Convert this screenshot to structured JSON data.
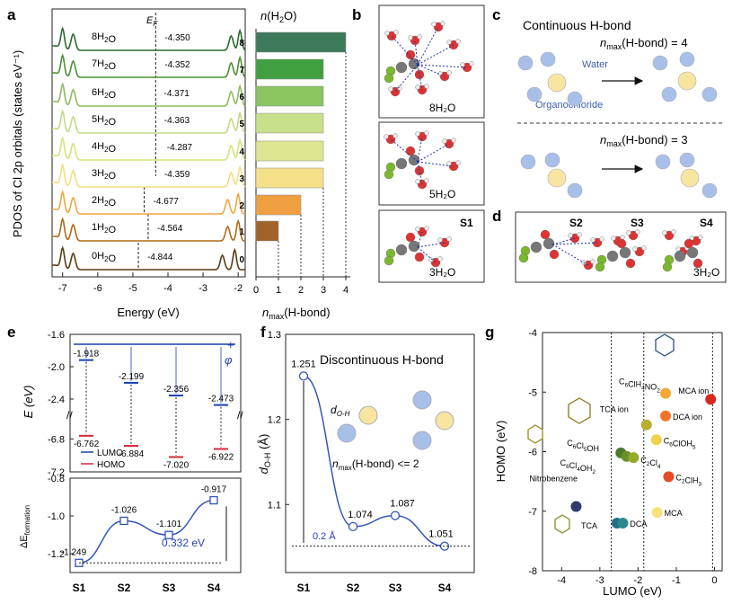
{
  "chart_data": [
    {
      "panel": "a",
      "type": "line",
      "ylabel": "PDOS of Cl 2p orbitals (states eV⁻¹)",
      "xlabel": "Energy (eV)",
      "x_ticks": [
        "-7",
        "-6",
        "-5",
        "-4",
        "-3",
        "-2"
      ],
      "xlim": [
        -7.3,
        -1.8
      ],
      "fermi_label": "E_F",
      "series": [
        {
          "name": "0H₂O",
          "fermi": -4.844,
          "fermi_label": "-4.844",
          "peaks": [
            -7.0,
            -6.7,
            -2.45,
            -2.1
          ]
        },
        {
          "name": "1H₂O",
          "fermi": -4.564,
          "fermi_label": "-4.564",
          "peaks": [
            -7.0,
            -6.7,
            -2.3,
            -2.0
          ]
        },
        {
          "name": "2H₂O",
          "fermi": -4.677,
          "fermi_label": "-4.677",
          "peaks": [
            -7.0,
            -6.7,
            -2.3,
            -2.0
          ]
        },
        {
          "name": "3H₂O",
          "fermi": -4.359,
          "fermi_label": "-4.359",
          "peaks": [
            -7.0,
            -6.7,
            -2.2,
            -1.95
          ]
        },
        {
          "name": "4H₂O",
          "fermi": -4.287,
          "fermi_label": "-4.287",
          "peaks": [
            -7.0,
            -6.7,
            -2.2,
            -1.95
          ]
        },
        {
          "name": "5H₂O",
          "fermi": -4.363,
          "fermi_label": "-4.363",
          "peaks": [
            -7.0,
            -6.7,
            -2.2,
            -1.95
          ]
        },
        {
          "name": "6H₂O",
          "fermi": -4.371,
          "fermi_label": "-4.371",
          "peaks": [
            -7.0,
            -6.7,
            -2.2,
            -1.95
          ]
        },
        {
          "name": "7H₂O",
          "fermi": -4.352,
          "fermi_label": "-4.352",
          "peaks": [
            -7.0,
            -6.7,
            -2.2,
            -1.95
          ]
        },
        {
          "name": "8H₂O",
          "fermi": -4.35,
          "fermi_label": "-4.350",
          "peaks": [
            -7.0,
            -6.7,
            -2.2,
            -1.95
          ]
        }
      ],
      "colors": [
        "#5a3c12",
        "#b06a18",
        "#f0a640",
        "#f1dd86",
        "#d6e27c",
        "#c2da86",
        "#8fba60",
        "#4f8f35",
        "#2c6b2c"
      ]
    },
    {
      "panel": "a-bar",
      "type": "bar",
      "ytitle": "n(H₂O)",
      "xlabel": "n_max(H-bond)",
      "categories": [
        "0",
        "1",
        "2",
        "3",
        "4",
        "5",
        "6",
        "7",
        "8"
      ],
      "values": [
        0,
        1,
        2,
        3,
        3,
        3,
        3,
        3,
        4
      ],
      "x_ticks": [
        "0",
        "1",
        "2",
        "3",
        "4"
      ],
      "xlim": [
        0,
        4
      ],
      "colors": [
        "#ffffff",
        "#a0642a",
        "#f0a040",
        "#f5e08a",
        "#dde690",
        "#c8e08a",
        "#8cc460",
        "#40a040",
        "#3c7a5a"
      ]
    },
    {
      "panel": "e",
      "type": "scatter",
      "title_symbol": "φ",
      "ylabel": "E (eV)",
      "categories": [
        "S1",
        "S2",
        "S3",
        "S4"
      ],
      "y_ticks_top": [
        "-1.6",
        "-2.0",
        "-2.4"
      ],
      "y_ticks_bottom": [
        "-6.8",
        "-7.2"
      ],
      "series": [
        {
          "name": "LUMO",
          "color": "#1a3fb0",
          "values": [
            -1.918,
            -2.199,
            -2.356,
            -2.473
          ],
          "labels": [
            "-1.918",
            "-2.199",
            "-2.356",
            "-2.473"
          ]
        },
        {
          "name": "HOMO",
          "color": "#d6283a",
          "values": [
            -6.762,
            -6.884,
            -7.02,
            -6.922
          ],
          "labels": [
            "-6.762",
            "-6.884",
            "-7.020",
            "-6.922"
          ]
        }
      ]
    },
    {
      "panel": "e-lower",
      "type": "line",
      "ylabel": "ΔE_formation",
      "categories": [
        "S1",
        "S2",
        "S3",
        "S4"
      ],
      "values": [
        -1.249,
        -1.026,
        -1.101,
        -0.917
      ],
      "labels": [
        "-1.249",
        "-1.026",
        "-1.101",
        "-0.917"
      ],
      "y_ticks": [
        "-0.8",
        "-1.0",
        "-1.2"
      ],
      "ylim": [
        -1.3,
        -0.8
      ],
      "annotation": "0.332 eV",
      "color": "#3355bb"
    },
    {
      "panel": "f",
      "type": "line",
      "ylabel": "d_O-H (Å)",
      "categories": [
        "S1",
        "S2",
        "S3",
        "S4"
      ],
      "values": [
        1.251,
        1.074,
        1.087,
        1.051
      ],
      "labels": [
        "1.251",
        "1.074",
        "1.087",
        "1.051"
      ],
      "y_ticks": [
        "1.3",
        "1.2",
        "1.1"
      ],
      "ylim": [
        1.02,
        1.3
      ],
      "annotation_title": "Discontinuous H-bond",
      "annotation_d": "d_O-H",
      "annotation_n": "n_max(H-bond) <= 2",
      "annotation_delta": "0.2 Å",
      "color": "#3355bb"
    },
    {
      "panel": "g",
      "type": "scatter",
      "xlabel": "LUMO (eV)",
      "ylabel": "HOMO (eV)",
      "x_ticks": [
        "-4",
        "-3",
        "-2",
        "-1",
        "0"
      ],
      "y_ticks": [
        "-4",
        "-5",
        "-6",
        "-7",
        "-8"
      ],
      "xlim": [
        -4.5,
        0.2
      ],
      "ylim": [
        -8,
        -4
      ],
      "points": [
        {
          "label": "Nitrobenzene",
          "x": -3.62,
          "y": -6.92,
          "color": "#2e3a6e"
        },
        {
          "label": "TCA",
          "x": -2.55,
          "y": -7.2,
          "color": "#1f6f8b"
        },
        {
          "label": "DCA",
          "x": -2.4,
          "y": -7.2,
          "color": "#2a8a8e"
        },
        {
          "label": "C₆Cl₅OH",
          "x": -2.45,
          "y": -6.02,
          "color": "#4d7a2d"
        },
        {
          "label": "C₆Cl₄OH₂",
          "x": -2.3,
          "y": -6.08,
          "color": "#6a8f28"
        },
        {
          "label": "C₂Cl₄",
          "x": -2.12,
          "y": -6.1,
          "color": "#95aa28"
        },
        {
          "label": "TCA ion",
          "x": -1.78,
          "y": -5.55,
          "color": "#b6b02a"
        },
        {
          "label": "C₆ClOH₅",
          "x": -1.52,
          "y": -5.8,
          "color": "#eed24a"
        },
        {
          "label": "MCA",
          "x": -1.5,
          "y": -7.02,
          "color": "#f5e27a"
        },
        {
          "label": "C₆ClH₄NO₂",
          "x": -1.28,
          "y": -5.02,
          "color": "#f2a832"
        },
        {
          "label": "DCA ion",
          "x": -1.28,
          "y": -5.4,
          "color": "#ee7426"
        },
        {
          "label": "C₂ClH₃",
          "x": -1.2,
          "y": -6.42,
          "color": "#e64a24"
        },
        {
          "label": "MCA ion",
          "x": -0.1,
          "y": -5.12,
          "color": "#d8281e"
        }
      ],
      "vlines": [
        -2.7,
        -1.85,
        -0.05
      ]
    }
  ],
  "panels": {
    "b_labels": [
      "8H₂O",
      "5H₂O",
      "S1",
      "3H₂O"
    ],
    "c_title": "Continuous H-bond",
    "c_n4": "n_max(H-bond) = 4",
    "c_n3": "n_max(H-bond) = 3",
    "c_water": "Water",
    "c_organo": "Organochloride",
    "d_labels": [
      "S2",
      "S3",
      "S4",
      "3H₂O"
    ],
    "letters": [
      "a",
      "b",
      "c",
      "d",
      "e",
      "f",
      "g"
    ]
  },
  "legend_e": [
    "LUMO",
    "HOMO"
  ]
}
